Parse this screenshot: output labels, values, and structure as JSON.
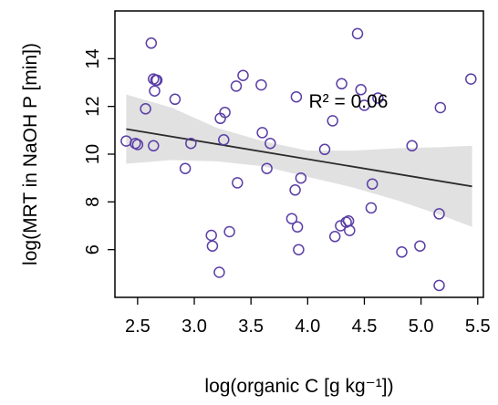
{
  "chart_data": {
    "type": "scatter",
    "title": "",
    "xlabel": "log(organic C [g kg⁻¹])",
    "ylabel": "log(MRT in NaOH P [min])",
    "xlim": [
      2.3,
      5.55
    ],
    "ylim": [
      4.0,
      16.0
    ],
    "xticks": [
      "2.5",
      "3.0",
      "3.5",
      "4.0",
      "4.5",
      "5.0",
      "5.5"
    ],
    "yticks": [
      "6",
      "8",
      "10",
      "12",
      "14"
    ],
    "grid": false,
    "legend": "none",
    "annotation": "R² = 0.06",
    "colors": {
      "points": "#5b3fa6",
      "fit_line": "#2b2b2b",
      "band": "#e1e1e1"
    },
    "fit": {
      "x": [
        2.4,
        5.45
      ],
      "y": [
        11.05,
        8.65
      ]
    },
    "confidence_band": {
      "x": [
        2.4,
        2.8,
        3.2,
        3.6,
        4.0,
        4.4,
        4.8,
        5.2,
        5.45
      ],
      "lower": [
        9.6,
        9.75,
        9.7,
        9.5,
        9.05,
        8.6,
        8.05,
        7.4,
        6.95
      ],
      "upper": [
        12.5,
        11.95,
        11.1,
        10.55,
        10.15,
        10.15,
        10.25,
        10.3,
        10.35
      ]
    },
    "x": [
      2.4,
      2.48,
      2.5,
      2.57,
      2.62,
      2.64,
      2.65,
      2.66,
      2.67,
      2.64,
      2.83,
      2.92,
      2.97,
      3.15,
      3.16,
      3.22,
      3.23,
      3.26,
      3.27,
      3.31,
      3.37,
      3.38,
      3.43,
      3.59,
      3.6,
      3.64,
      3.67,
      3.86,
      3.89,
      3.9,
      3.91,
      3.92,
      3.94,
      4.15,
      4.22,
      4.24,
      4.29,
      4.3,
      4.34,
      4.36,
      4.37,
      4.44,
      4.47,
      4.5,
      4.56,
      4.57,
      4.62,
      4.83,
      4.92,
      4.99,
      5.16,
      5.16,
      5.17,
      5.44
    ],
    "y": [
      10.55,
      10.45,
      10.4,
      11.9,
      14.65,
      10.35,
      12.65,
      13.1,
      13.1,
      13.15,
      12.3,
      9.4,
      10.45,
      6.6,
      6.15,
      5.05,
      11.5,
      10.6,
      11.75,
      6.75,
      12.85,
      8.8,
      13.3,
      12.9,
      10.9,
      9.4,
      10.45,
      7.3,
      8.5,
      12.4,
      6.95,
      6.0,
      9.0,
      10.2,
      11.4,
      6.55,
      7.0,
      12.95,
      7.15,
      7.2,
      6.8,
      15.05,
      12.7,
      12.05,
      7.75,
      8.75,
      12.35,
      5.9,
      10.35,
      6.15,
      4.5,
      7.5,
      11.95,
      13.15
    ]
  }
}
